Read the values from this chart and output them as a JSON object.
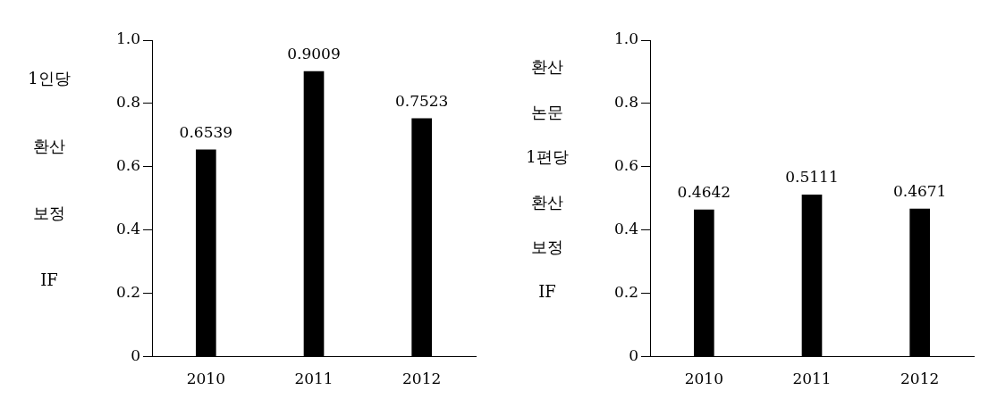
{
  "chart_data": [
    {
      "type": "bar",
      "ylabel": "1인당 환산 보정 IF",
      "categories": [
        "2010",
        "2011",
        "2012"
      ],
      "values": [
        0.6539,
        0.9009,
        0.7523
      ],
      "color": "#000000",
      "ylim": [
        0,
        1
      ],
      "yticks": [
        0,
        0.2,
        0.4,
        0.6,
        0.8,
        {
          "value": 1,
          "label": "1.0"
        }
      ],
      "grid": false,
      "data_labels": true
    },
    {
      "type": "bar",
      "ylabel": "환산 논문 1편당 환산 보정 IF",
      "categories": [
        "2010",
        "2011",
        "2012"
      ],
      "values": [
        0.4642,
        0.5111,
        0.4671
      ],
      "color": "#000000",
      "ylim": [
        0,
        1
      ],
      "yticks": [
        0,
        0.2,
        0.4,
        0.6,
        0.8,
        {
          "value": 1,
          "label": "1.0"
        }
      ],
      "grid": false,
      "data_labels": true
    }
  ]
}
